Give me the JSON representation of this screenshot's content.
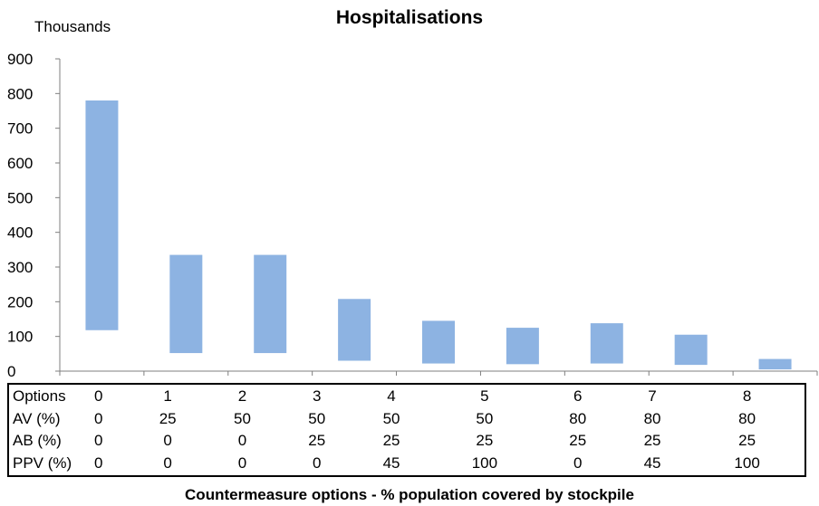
{
  "chart_data": {
    "type": "bar",
    "subtype": "floating-range",
    "title": "Hospitalisations",
    "units_label": "Thousands",
    "xlabel": "Countermeasure options - % population covered by stockpile",
    "ylim": [
      0,
      900
    ],
    "yticks": [
      0,
      100,
      200,
      300,
      400,
      500,
      600,
      700,
      800,
      900
    ],
    "categories": [
      "0",
      "1",
      "2",
      "3",
      "4",
      "5",
      "6",
      "7",
      "8"
    ],
    "low": [
      118,
      52,
      52,
      30,
      22,
      20,
      22,
      18,
      5
    ],
    "high": [
      780,
      335,
      335,
      208,
      145,
      125,
      138,
      105,
      35
    ],
    "bar_color": "#8db3e2",
    "grid": false,
    "legend": "none",
    "options_table": {
      "rows": [
        {
          "label": "Options",
          "values": [
            "0",
            "1",
            "2",
            "3",
            "4",
            "5",
            "6",
            "7",
            "8"
          ]
        },
        {
          "label": "AV (%)",
          "values": [
            "0",
            "25",
            "50",
            "50",
            "50",
            "50",
            "80",
            "80",
            "80"
          ]
        },
        {
          "label": "AB (%)",
          "values": [
            "0",
            "0",
            "0",
            "25",
            "25",
            "25",
            "25",
            "25",
            "25"
          ]
        },
        {
          "label": "PPV (%)",
          "values": [
            "0",
            "0",
            "0",
            "0",
            "45",
            "100",
            "0",
            "45",
            "100"
          ]
        }
      ]
    }
  }
}
